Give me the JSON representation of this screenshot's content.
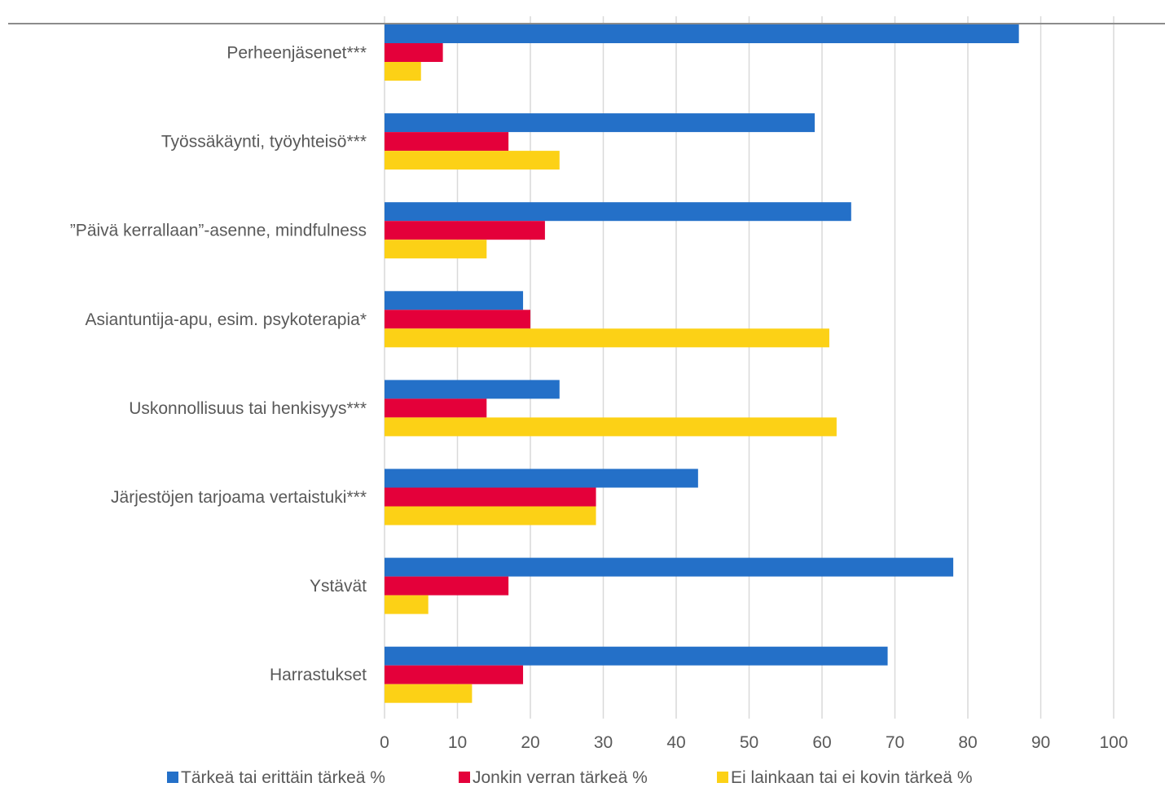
{
  "chart_data": {
    "type": "bar",
    "orientation": "horizontal",
    "categories": [
      "Perheenjäsenet***",
      "Työssäkäynti, työyhteisö***",
      "”Päivä kerrallaan”-asenne, mindfulness",
      "Asiantuntija-apu, esim. psykoterapia*",
      "Uskonnollisuus tai henkisyys***",
      "Järjestöjen tarjoama vertaistuki***",
      "Ystävät",
      "Harrastukset"
    ],
    "series": [
      {
        "name": "Tärkeä tai erittäin tärkeä %",
        "color": "#2470C8",
        "values": [
          87,
          59,
          64,
          19,
          24,
          43,
          78,
          69
        ]
      },
      {
        "name": "Jonkin verran tärkeä %",
        "color": "#E4003A",
        "values": [
          8,
          17,
          22,
          20,
          14,
          29,
          17,
          19
        ]
      },
      {
        "name": "Ei lainkaan tai ei kovin tärkeä %",
        "color": "#FCD116",
        "values": [
          5,
          24,
          14,
          61,
          62,
          29,
          6,
          12
        ]
      }
    ],
    "xlim": [
      0,
      100
    ],
    "ticks": [
      "0",
      "10",
      "20",
      "30",
      "40",
      "50",
      "60",
      "70",
      "80",
      "90",
      "100"
    ],
    "grid": true,
    "legend_position": "bottom",
    "title": "",
    "xlabel": "",
    "ylabel": ""
  }
}
